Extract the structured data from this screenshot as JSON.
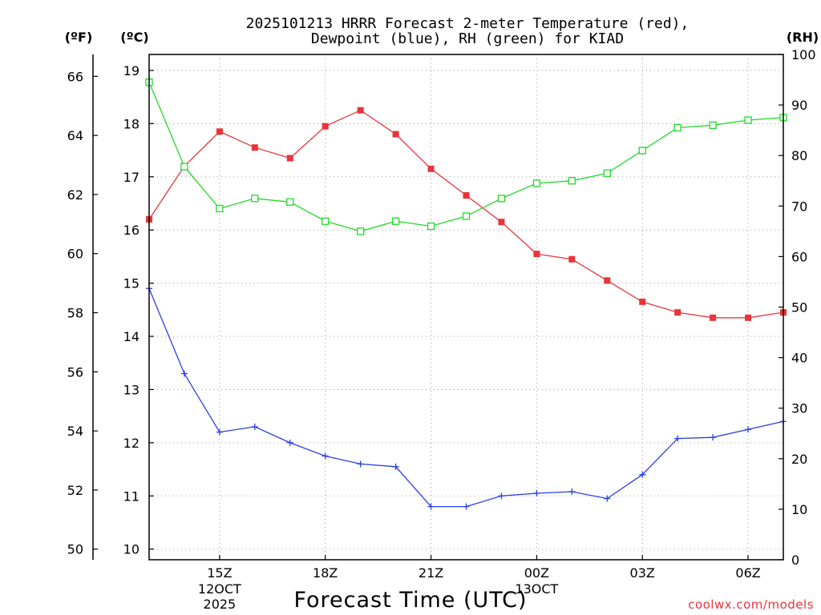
{
  "chart_data": {
    "type": "line",
    "title": "2025101213 HRRR Forecast 2-meter Temperature (red),",
    "title_line2": "Dewpoint (blue), RH (green) for KIAD",
    "xlabel": "Forecast Time (UTC)",
    "credit": "coolwx.com/models",
    "units": {
      "fahrenheit": "(ºF)",
      "celsius": "(ºC)",
      "rh": "(RH)"
    },
    "x_hours": [
      13,
      14,
      15,
      16,
      17,
      18,
      19,
      20,
      21,
      22,
      23,
      24,
      25,
      26,
      27,
      28,
      29,
      30,
      31
    ],
    "xlim": [
      13,
      31
    ],
    "x_ticks": [
      {
        "hour": 15,
        "label": "15Z",
        "sublabel": "12OCT",
        "sublabel2": "2025"
      },
      {
        "hour": 18,
        "label": "18Z"
      },
      {
        "hour": 21,
        "label": "21Z"
      },
      {
        "hour": 24,
        "label": "00Z",
        "sublabel": "13OCT"
      },
      {
        "hour": 27,
        "label": "03Z"
      },
      {
        "hour": 30,
        "label": "06Z"
      }
    ],
    "ylim_celsius": [
      9.8,
      19.3
    ],
    "celsius_ticks": [
      "10",
      "11",
      "12",
      "13",
      "14",
      "15",
      "16",
      "17",
      "18",
      "19"
    ],
    "fahrenheit_ticks": [
      "50",
      "52",
      "54",
      "56",
      "58",
      "60",
      "62",
      "64",
      "66"
    ],
    "rh_ticks": [
      "0",
      "10",
      "20",
      "30",
      "40",
      "50",
      "60",
      "70",
      "80",
      "90",
      "100"
    ],
    "grid": true,
    "series": [
      {
        "name": "Temperature",
        "color": "#e8343a",
        "marker": "filled-square",
        "axis": "celsius",
        "values": [
          16.2,
          17.2,
          17.85,
          17.55,
          17.35,
          17.95,
          18.25,
          17.8,
          17.15,
          16.65,
          16.15,
          15.55,
          15.45,
          15.05,
          14.65,
          14.45,
          14.35,
          14.35,
          14.45
        ]
      },
      {
        "name": "Dewpoint",
        "color": "#2a3ee8",
        "marker": "plus",
        "axis": "celsius",
        "values": [
          14.9,
          13.3,
          12.2,
          12.3,
          12.0,
          11.75,
          11.6,
          11.55,
          10.8,
          10.8,
          11.0,
          11.05,
          11.08,
          10.95,
          11.4,
          12.08,
          12.1,
          12.25,
          12.4
        ]
      },
      {
        "name": "RH",
        "color": "#22d82a",
        "marker": "open-square",
        "axis": "rh",
        "values": [
          94.5,
          77.8,
          69.5,
          71.5,
          70.8,
          67.0,
          65.0,
          67.0,
          66.0,
          68.0,
          71.5,
          74.5,
          75.0,
          76.5,
          81.0,
          85.5,
          86.0,
          87.0,
          87.5
        ]
      }
    ]
  }
}
